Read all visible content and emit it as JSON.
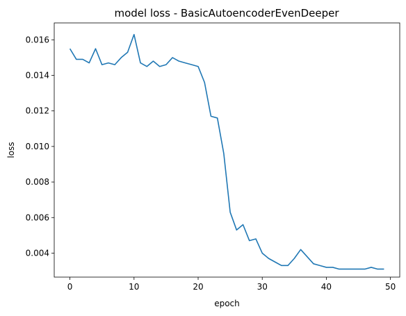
{
  "chart_data": {
    "type": "line",
    "title": "model loss - BasicAutoencoderEvenDeeper",
    "xlabel": "epoch",
    "ylabel": "loss",
    "xlim": [
      -2.45,
      51.45
    ],
    "ylim": [
      0.00265,
      0.01695
    ],
    "xticks": [
      0,
      10,
      20,
      30,
      40,
      50
    ],
    "yticks": [
      0.004,
      0.006,
      0.008,
      0.01,
      0.012,
      0.014,
      0.016
    ],
    "xtick_labels": [
      "0",
      "10",
      "20",
      "30",
      "40",
      "50"
    ],
    "ytick_labels": [
      "0.004",
      "0.006",
      "0.008",
      "0.010",
      "0.012",
      "0.014",
      "0.016"
    ],
    "grid": false,
    "color": "#1f77b4",
    "series": [
      {
        "x": [
          0,
          1,
          2,
          3,
          4,
          5,
          6,
          7,
          8,
          9,
          10,
          11,
          12,
          13,
          14,
          15,
          16,
          17,
          18,
          19,
          20,
          21,
          22,
          23,
          24,
          25,
          26,
          27,
          28,
          29,
          30,
          31,
          32,
          33,
          34,
          35,
          36,
          37,
          38,
          39,
          40,
          41,
          42,
          43,
          44,
          45,
          46,
          47,
          48,
          49
        ],
        "values": [
          0.0155,
          0.0149,
          0.0149,
          0.0147,
          0.0155,
          0.0146,
          0.0147,
          0.0146,
          0.015,
          0.0153,
          0.0163,
          0.0147,
          0.0145,
          0.0148,
          0.0145,
          0.0146,
          0.015,
          0.0148,
          0.0147,
          0.0146,
          0.0145,
          0.0136,
          0.0117,
          0.0116,
          0.0096,
          0.0063,
          0.0053,
          0.0056,
          0.0047,
          0.0048,
          0.004,
          0.0037,
          0.0035,
          0.0033,
          0.0033,
          0.0037,
          0.0042,
          0.0038,
          0.0034,
          0.0033,
          0.0032,
          0.0032,
          0.0031,
          0.0031,
          0.0031,
          0.0031,
          0.0031,
          0.0032,
          0.0031,
          0.0031
        ]
      }
    ]
  }
}
